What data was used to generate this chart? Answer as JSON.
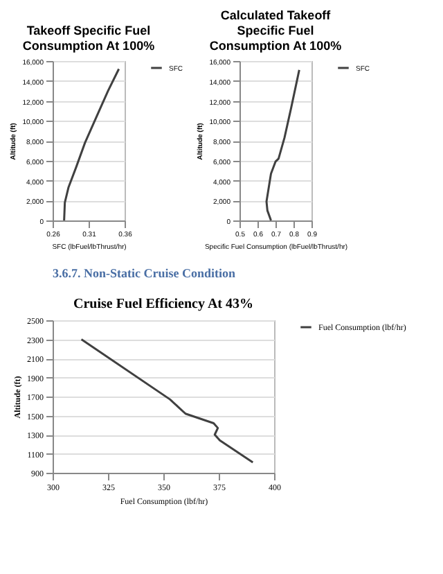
{
  "chart_data": [
    {
      "type": "line",
      "title": "Takeoff Specific Fuel Consumption At 100%",
      "xlabel": "SFC (lbFuel/lbThrust/hr)",
      "ylabel": "Altitude (ft)",
      "xlim": [
        0.26,
        0.36
      ],
      "xticks": [
        0.26,
        0.31,
        0.36
      ],
      "ylim": [
        0,
        16000
      ],
      "yticks": [
        0,
        {
          "value": 2000,
          "label": "2,000"
        },
        {
          "value": 4000,
          "label": "4,000"
        },
        {
          "value": 6000,
          "label": "6,000"
        },
        {
          "value": 8000,
          "label": "8,000"
        },
        {
          "value": 10000,
          "label": "10,000"
        },
        {
          "value": 12000,
          "label": "12,000"
        },
        {
          "value": 14000,
          "label": "14,000"
        },
        {
          "value": 16000,
          "label": "16,000"
        }
      ],
      "grid": "y",
      "legend": "right",
      "marker": "none",
      "line_style": "solid",
      "series": [
        {
          "name": "SFC",
          "color": "#404040",
          "x": [
            0.276,
            0.277,
            0.282,
            0.293,
            0.305,
            0.324,
            0.337,
            0.352
          ],
          "values": [
            0,
            1800,
            3300,
            5400,
            7800,
            10900,
            13000,
            15200
          ]
        }
      ]
    },
    {
      "type": "line",
      "title": "Calculated Takeoff Specific Fuel Consumption At 100%",
      "xlabel": "Specific Fuel Consumption (lbFuel/lbThrust/hr)",
      "ylabel": "Altitude (ft)",
      "xlim": [
        0.5,
        0.9
      ],
      "xticks": [
        0.5,
        0.6,
        0.7,
        0.8,
        0.9
      ],
      "ylim": [
        0,
        16000
      ],
      "yticks": [
        0,
        {
          "value": 2000,
          "label": "2,000"
        },
        {
          "value": 4000,
          "label": "4,000"
        },
        {
          "value": 6000,
          "label": "6,000"
        },
        {
          "value": 8000,
          "label": "8,000"
        },
        {
          "value": 10000,
          "label": "10,000"
        },
        {
          "value": 12000,
          "label": "12,000"
        },
        {
          "value": 14000,
          "label": "14,000"
        },
        {
          "value": 16000,
          "label": "16,000"
        }
      ],
      "grid": "y",
      "legend": "right",
      "marker": "none",
      "line_style": "solid",
      "series": [
        {
          "name": "SFC",
          "color": "#404040",
          "x": [
            0.675,
            0.655,
            0.65,
            0.675,
            0.7,
            0.717,
            0.75,
            0.787,
            0.832
          ],
          "values": [
            0,
            1000,
            1900,
            4700,
            5900,
            6200,
            8300,
            11300,
            15100
          ]
        }
      ]
    },
    {
      "type": "line",
      "title": "Cruise Fuel Efficiency At 43%",
      "xlabel": "Fuel Consumption (lbf/hr)",
      "ylabel": "Altitude (ft)",
      "annotations": [
        "3.6.7.        Non-Static Cruise Condition"
      ],
      "xlim": [
        300,
        400
      ],
      "xticks": [
        300,
        325,
        350,
        375,
        400
      ],
      "ylim": [
        900,
        2500
      ],
      "yticks": [
        900,
        1100,
        1300,
        1500,
        1700,
        1900,
        2100,
        2300,
        2500
      ],
      "grid": "y",
      "legend": "right",
      "marker": "none",
      "line_style": "solid",
      "series": [
        {
          "name": "Fuel Consumption (lbf/hr)",
          "color": "#404040",
          "x": [
            313,
            353,
            360,
            372.7,
            374.6,
            373.2,
            375.5,
            390.4
          ],
          "values": [
            2300,
            1670,
            1520,
            1420,
            1370,
            1300,
            1240,
            1010
          ]
        }
      ]
    }
  ]
}
